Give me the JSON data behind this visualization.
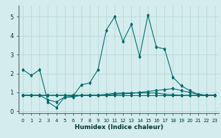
{
  "xlabel": "Humidex (Indice chaleur)",
  "bg_color": "#d4ecee",
  "grid_color": "#b0d4d4",
  "line_color": "#006868",
  "xlim": [
    -0.5,
    23.5
  ],
  "ylim": [
    -0.1,
    5.6
  ],
  "x_ticks": [
    0,
    1,
    2,
    3,
    4,
    5,
    6,
    7,
    8,
    9,
    10,
    11,
    12,
    13,
    14,
    15,
    16,
    17,
    18,
    19,
    20,
    21,
    22,
    23
  ],
  "y_ticks": [
    0,
    1,
    2,
    3,
    4,
    5
  ],
  "series": [
    [
      2.2,
      1.9,
      2.2,
      0.5,
      0.2,
      0.75,
      0.8,
      1.4,
      1.5,
      2.2,
      4.3,
      5.0,
      3.7,
      4.6,
      2.9,
      5.1,
      3.4,
      3.3,
      1.8,
      1.35,
      1.1,
      0.9,
      0.85,
      0.85
    ],
    [
      0.85,
      0.85,
      0.85,
      0.6,
      0.5,
      0.75,
      0.75,
      0.85,
      0.85,
      0.85,
      0.85,
      0.9,
      0.92,
      0.95,
      1.0,
      1.05,
      1.1,
      1.15,
      1.2,
      1.1,
      1.0,
      0.9,
      0.85,
      0.85
    ],
    [
      0.85,
      0.85,
      0.85,
      0.85,
      0.85,
      0.85,
      0.85,
      0.85,
      0.85,
      0.85,
      0.85,
      0.85,
      0.85,
      0.85,
      0.85,
      0.85,
      0.85,
      0.85,
      0.85,
      0.85,
      0.85,
      0.85,
      0.85,
      0.85
    ],
    [
      0.85,
      0.85,
      0.85,
      0.85,
      0.85,
      0.85,
      0.85,
      0.85,
      0.85,
      0.85,
      0.9,
      0.95,
      0.97,
      0.97,
      0.97,
      0.97,
      0.97,
      0.9,
      0.87,
      0.85,
      0.85,
      0.85,
      0.85,
      0.85
    ]
  ]
}
